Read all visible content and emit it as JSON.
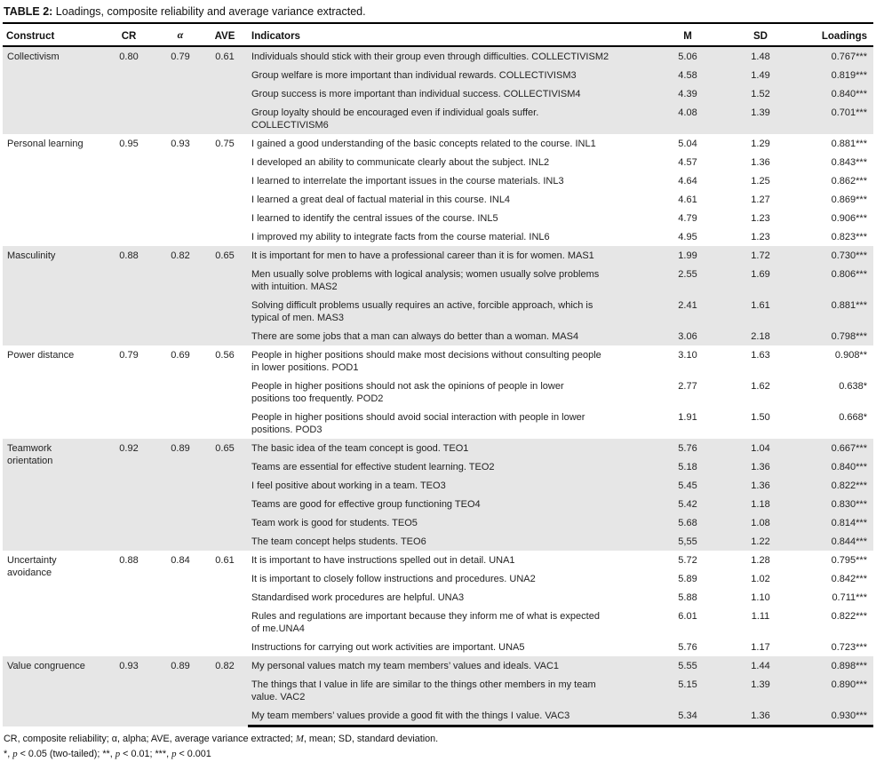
{
  "colors": {
    "row_stripe": "#e6e6e6",
    "border": "#000000",
    "text": "#1a1a1a"
  },
  "title": {
    "label": "TABLE 2:",
    "text": " Loadings, composite reliability and average variance extracted."
  },
  "table": {
    "columns": [
      "Construct",
      "CR",
      "α",
      "AVE",
      "Indicators",
      "M",
      "SD",
      "Loadings"
    ],
    "groups": [
      {
        "construct": "Collectivism",
        "cr": "0.80",
        "alpha": "0.79",
        "ave": "0.61",
        "rows": [
          {
            "indicator": "Individuals should stick with their group even through difficulties. COLLECTIVISM2",
            "m": "5.06",
            "sd": "1.48",
            "loading": "0.767***"
          },
          {
            "indicator": "Group welfare is more important than individual rewards. COLLECTIVISM3",
            "m": "4.58",
            "sd": "1.49",
            "loading": "0.819***"
          },
          {
            "indicator": "Group success is more important than individual success. COLLECTIVISM4",
            "m": "4.39",
            "sd": "1.52",
            "loading": "0.840***"
          },
          {
            "indicator": "Group loyalty should be encouraged even if individual goals suffer.\nCOLLECTIVISM6",
            "m": "4.08",
            "sd": "1.39",
            "loading": "0.701***"
          }
        ]
      },
      {
        "construct": "Personal learning",
        "cr": "0.95",
        "alpha": "0.93",
        "ave": "0.75",
        "rows": [
          {
            "indicator": "I gained a good understanding of the basic concepts related to the course. INL1",
            "m": "5.04",
            "sd": "1.29",
            "loading": "0.881***"
          },
          {
            "indicator": "I developed an ability to communicate clearly about the subject. INL2",
            "m": "4.57",
            "sd": "1.36",
            "loading": "0.843***"
          },
          {
            "indicator": "I learned to interrelate the important issues in the course materials. INL3",
            "m": "4.64",
            "sd": "1.25",
            "loading": "0.862***"
          },
          {
            "indicator": "I learned a great deal of factual material in this course. INL4",
            "m": "4.61",
            "sd": "1.27",
            "loading": "0.869***"
          },
          {
            "indicator": "I learned to identify the central issues of the course. INL5",
            "m": "4.79",
            "sd": "1.23",
            "loading": "0.906***"
          },
          {
            "indicator": "I improved my ability to integrate facts from the course material. INL6",
            "m": "4.95",
            "sd": "1.23",
            "loading": "0.823***"
          }
        ]
      },
      {
        "construct": "Masculinity",
        "cr": "0.88",
        "alpha": "0.82",
        "ave": "0.65",
        "rows": [
          {
            "indicator": "It is important for men to have a professional career than it is for women. MAS1",
            "m": "1.99",
            "sd": "1.72",
            "loading": "0.730***"
          },
          {
            "indicator": "Men usually solve problems with logical analysis; women usually solve problems\nwith intuition. MAS2",
            "m": "2.55",
            "sd": "1.69",
            "loading": "0.806***"
          },
          {
            "indicator": "Solving difficult problems usually requires an active, forcible approach, which is\ntypical of men. MAS3",
            "m": "2.41",
            "sd": "1.61",
            "loading": "0.881***"
          },
          {
            "indicator": "There are some jobs that a man can always do better than a woman. MAS4",
            "m": "3.06",
            "sd": "2.18",
            "loading": "0.798***"
          }
        ]
      },
      {
        "construct": "Power distance",
        "cr": "0.79",
        "alpha": "0.69",
        "ave": "0.56",
        "rows": [
          {
            "indicator": "People in higher positions should make most decisions without consulting people\nin lower positions. POD1",
            "m": "3.10",
            "sd": "1.63",
            "loading": "0.908**"
          },
          {
            "indicator": "People in higher positions should not ask the opinions of people in lower\npositions too frequently. POD2",
            "m": "2.77",
            "sd": "1.62",
            "loading": "0.638*"
          },
          {
            "indicator": "People in higher positions should avoid social interaction with people in lower\npositions. POD3",
            "m": "1.91",
            "sd": "1.50",
            "loading": "0.668*"
          }
        ]
      },
      {
        "construct": "Teamwork\norientation",
        "cr": "0.92",
        "alpha": "0.89",
        "ave": "0.65",
        "rows": [
          {
            "indicator": "The basic idea of the team concept is good. TEO1",
            "m": "5.76",
            "sd": "1.04",
            "loading": "0.667***"
          },
          {
            "indicator": "Teams are essential for effective student learning. TEO2",
            "m": "5.18",
            "sd": "1.36",
            "loading": "0.840***"
          },
          {
            "indicator": "I feel positive about working in a team. TEO3",
            "m": "5.45",
            "sd": "1.36",
            "loading": "0.822***"
          },
          {
            "indicator": "Teams are good for effective group functioning TEO4",
            "m": "5.42",
            "sd": "1.18",
            "loading": "0.830***"
          },
          {
            "indicator": "Team work is good for students. TEO5",
            "m": "5.68",
            "sd": "1.08",
            "loading": "0.814***"
          },
          {
            "indicator": "The team concept helps students. TEO6",
            "m": "5,55",
            "sd": "1.22",
            "loading": "0.844***"
          }
        ]
      },
      {
        "construct": "Uncertainty\navoidance",
        "cr": "0.88",
        "alpha": "0.84",
        "ave": "0.61",
        "rows": [
          {
            "indicator": "It is important to have instructions spelled out in detail. UNA1",
            "m": "5.72",
            "sd": "1.28",
            "loading": "0.795***"
          },
          {
            "indicator": "It is important to closely follow instructions and procedures. UNA2",
            "m": "5.89",
            "sd": "1.02",
            "loading": "0.842***"
          },
          {
            "indicator": "Standardised work procedures are helpful. UNA3",
            "m": "5.88",
            "sd": "1.10",
            "loading": "0.711***"
          },
          {
            "indicator": "Rules and regulations are important because they inform me of what is expected\nof me.UNA4",
            "m": "6.01",
            "sd": "1.11",
            "loading": "0.822***"
          },
          {
            "indicator": "Instructions for carrying out work activities are important. UNA5",
            "m": "5.76",
            "sd": "1.17",
            "loading": "0.723***"
          }
        ]
      },
      {
        "construct": "Value congruence",
        "cr": "0.93",
        "alpha": "0.89",
        "ave": "0.82",
        "rows": [
          {
            "indicator": "My personal values match my team members’ values and ideals. VAC1",
            "m": "5.55",
            "sd": "1.44",
            "loading": "0.898***"
          },
          {
            "indicator": "The things that I value in life are similar to the things other members in my team\nvalue. VAC2",
            "m": "5.15",
            "sd": "1.39",
            "loading": "0.890***"
          },
          {
            "indicator": "My team members’ values provide a good fit with the things I value. VAC3",
            "m": "5.34",
            "sd": "1.36",
            "loading": "0.930***"
          }
        ]
      }
    ]
  },
  "footnotes": [
    {
      "parts": [
        {
          "t": "CR, composite reliability; α, alpha; AVE, average variance extracted; "
        },
        {
          "t": "M",
          "i": true
        },
        {
          "t": ", mean; SD, standard deviation."
        }
      ]
    },
    {
      "parts": [
        {
          "t": "*, "
        },
        {
          "t": "p",
          "i": true
        },
        {
          "t": " < 0.05 (two-tailed); **, "
        },
        {
          "t": "p",
          "i": true
        },
        {
          "t": " < 0.01; ***, "
        },
        {
          "t": "p",
          "i": true
        },
        {
          "t": " < 0.001"
        }
      ]
    }
  ]
}
